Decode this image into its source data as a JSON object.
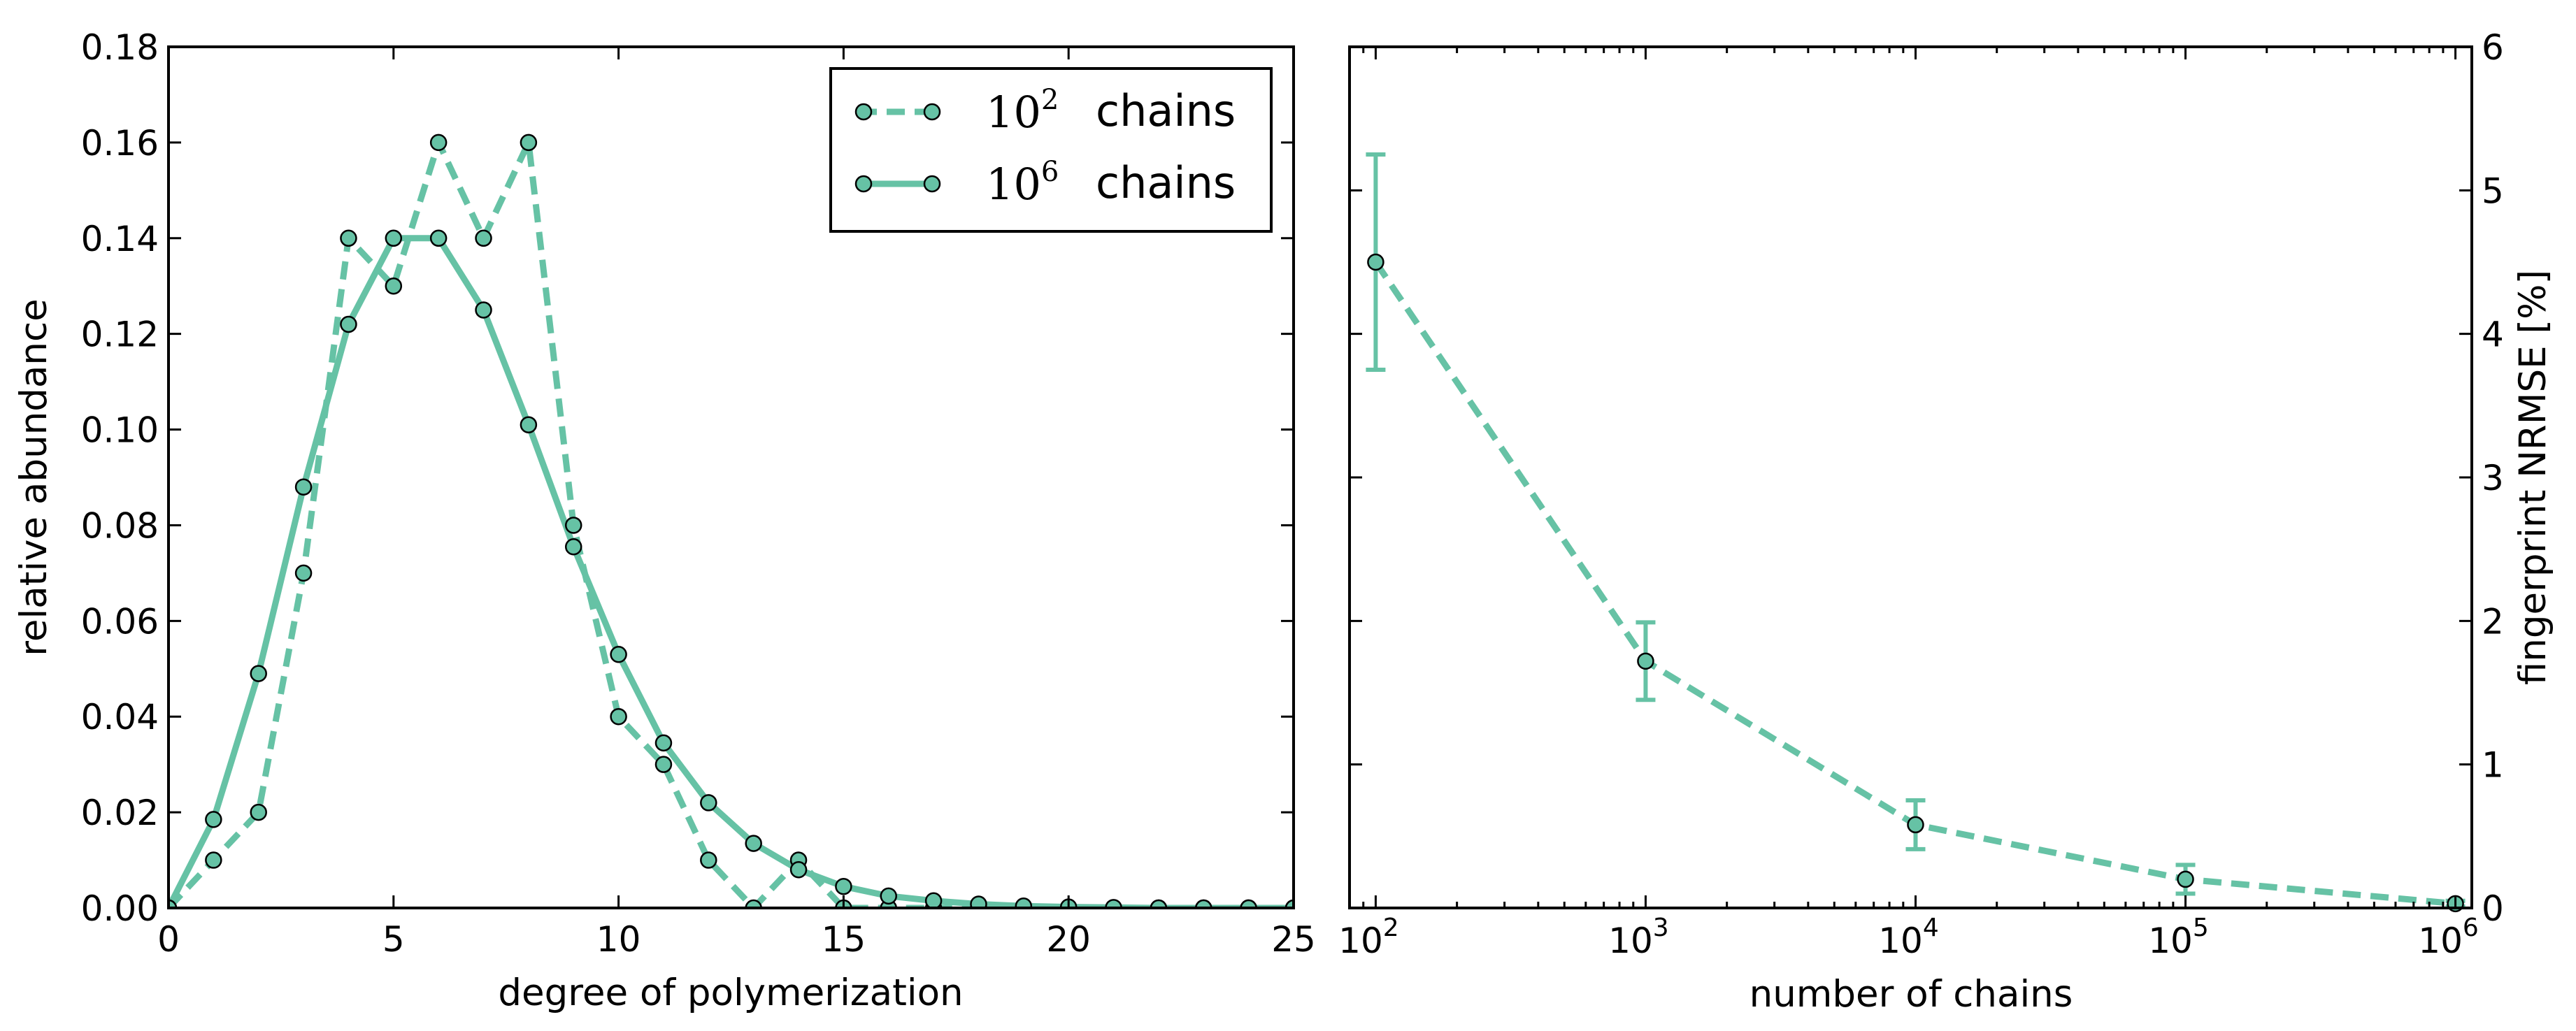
{
  "colors": {
    "series": "#66c2a5",
    "marker_edge": "#000000",
    "axes": "#000000"
  },
  "chart_data": [
    {
      "type": "line",
      "xlabel": "degree of polymerization",
      "ylabel": "relative abundance",
      "xlim": [
        0,
        25
      ],
      "ylim": [
        0,
        0.18
      ],
      "xticks": [
        0,
        5,
        10,
        15,
        20,
        25
      ],
      "xtick_labels": [
        "0",
        "5",
        "10",
        "15",
        "20",
        "25"
      ],
      "yticks": [
        0,
        0.02,
        0.04,
        0.06,
        0.08,
        0.1,
        0.12,
        0.14,
        0.16,
        0.18
      ],
      "ytick_labels": [
        "0.00",
        "0.02",
        "0.04",
        "0.06",
        "0.08",
        "0.10",
        "0.12",
        "0.14",
        "0.16",
        "0.18"
      ],
      "legend_position": "top-right",
      "series": [
        {
          "name": "10^2 chains",
          "legend_base": "10",
          "legend_exp": "2",
          "legend_text": "chains",
          "line_style": "dashed",
          "x": [
            0,
            1,
            2,
            3,
            4,
            5,
            6,
            7,
            8,
            9,
            10,
            11,
            12,
            13,
            14,
            15,
            16,
            17,
            18,
            19,
            20,
            21,
            22,
            23,
            24,
            25
          ],
          "y": [
            0.0,
            0.01,
            0.02,
            0.07,
            0.14,
            0.13,
            0.16,
            0.14,
            0.16,
            0.08,
            0.04,
            0.03,
            0.01,
            0.0,
            0.01,
            0.0,
            0.0,
            0.0,
            0.0,
            0.0,
            0.0,
            0.0,
            0.0,
            0.0,
            0.0,
            0.0
          ]
        },
        {
          "name": "10^6 chains",
          "legend_base": "10",
          "legend_exp": "6",
          "legend_text": "chains",
          "line_style": "solid",
          "x": [
            0,
            1,
            2,
            3,
            4,
            5,
            6,
            7,
            8,
            9,
            10,
            11,
            12,
            13,
            14,
            15,
            16,
            17,
            18,
            19,
            20,
            21,
            22,
            23,
            24,
            25
          ],
          "y": [
            0.0,
            0.0185,
            0.049,
            0.088,
            0.122,
            0.14,
            0.14,
            0.125,
            0.101,
            0.0755,
            0.053,
            0.0345,
            0.022,
            0.0135,
            0.008,
            0.0045,
            0.0025,
            0.0015,
            0.0008,
            0.0004,
            0.0002,
            0.0001,
            0.0,
            0.0,
            0.0,
            0.0
          ]
        }
      ]
    },
    {
      "type": "line",
      "xlabel": "number of chains",
      "ylabel": "fingerprint NRMSE [%]",
      "xscale": "log",
      "xlim": [
        80,
        1150000
      ],
      "ylim": [
        0,
        6
      ],
      "xticks": [
        100,
        1000,
        10000,
        100000,
        1000000
      ],
      "xtick_bases": [
        "10",
        "10",
        "10",
        "10",
        "10"
      ],
      "xtick_exps": [
        "2",
        "3",
        "4",
        "5",
        "6"
      ],
      "yticks": [
        0,
        1,
        2,
        3,
        4,
        5,
        6
      ],
      "ytick_labels": [
        "0",
        "1",
        "2",
        "3",
        "4",
        "5",
        "6"
      ],
      "yaxis_position": "right",
      "series": [
        {
          "name": "NRMSE",
          "line_style": "dashed",
          "x": [
            100,
            1000,
            10000,
            100000,
            1000000
          ],
          "y": [
            4.5,
            1.72,
            0.58,
            0.2,
            0.03
          ],
          "err": [
            0.75,
            0.27,
            0.17,
            0.1,
            0.02
          ]
        }
      ]
    }
  ]
}
